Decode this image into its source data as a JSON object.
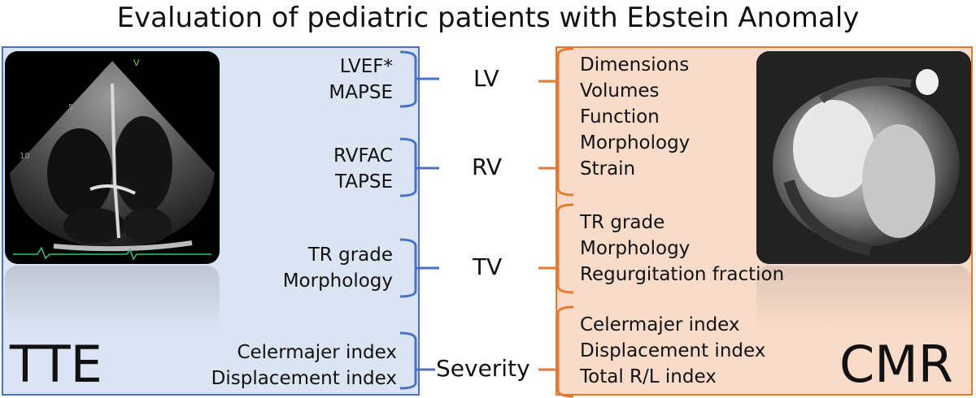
{
  "title": "Evaluation of pediatric patients with Ebstein Anomaly",
  "tte": {
    "label": "TTE",
    "lv": [
      "LVEF*",
      "MAPSE"
    ],
    "rv": [
      "RVFAC",
      "TAPSE"
    ],
    "tv": [
      "TR grade",
      "Morphology"
    ],
    "severity": [
      "Celermajer index",
      "Displacement index"
    ],
    "image_marks": [
      "V",
      "5",
      "10"
    ]
  },
  "center": {
    "lv": "LV",
    "rv": "RV",
    "tv": "TV",
    "severity": "Severity"
  },
  "cmr": {
    "label": "CMR",
    "lv_rv": [
      "Dimensions",
      "Volumes",
      "Function",
      "Morphology",
      "Strain"
    ],
    "tv": [
      "TR grade",
      "Morphology",
      "Regurgitation fraction"
    ],
    "severity": [
      "Celermajer index",
      "Displacement index",
      "Total R/L index"
    ]
  },
  "colors": {
    "tte_panel": "#dbe4f3",
    "tte_accent": "#4a72c4",
    "cmr_panel": "#f8dcc9",
    "cmr_accent": "#e8782e"
  }
}
